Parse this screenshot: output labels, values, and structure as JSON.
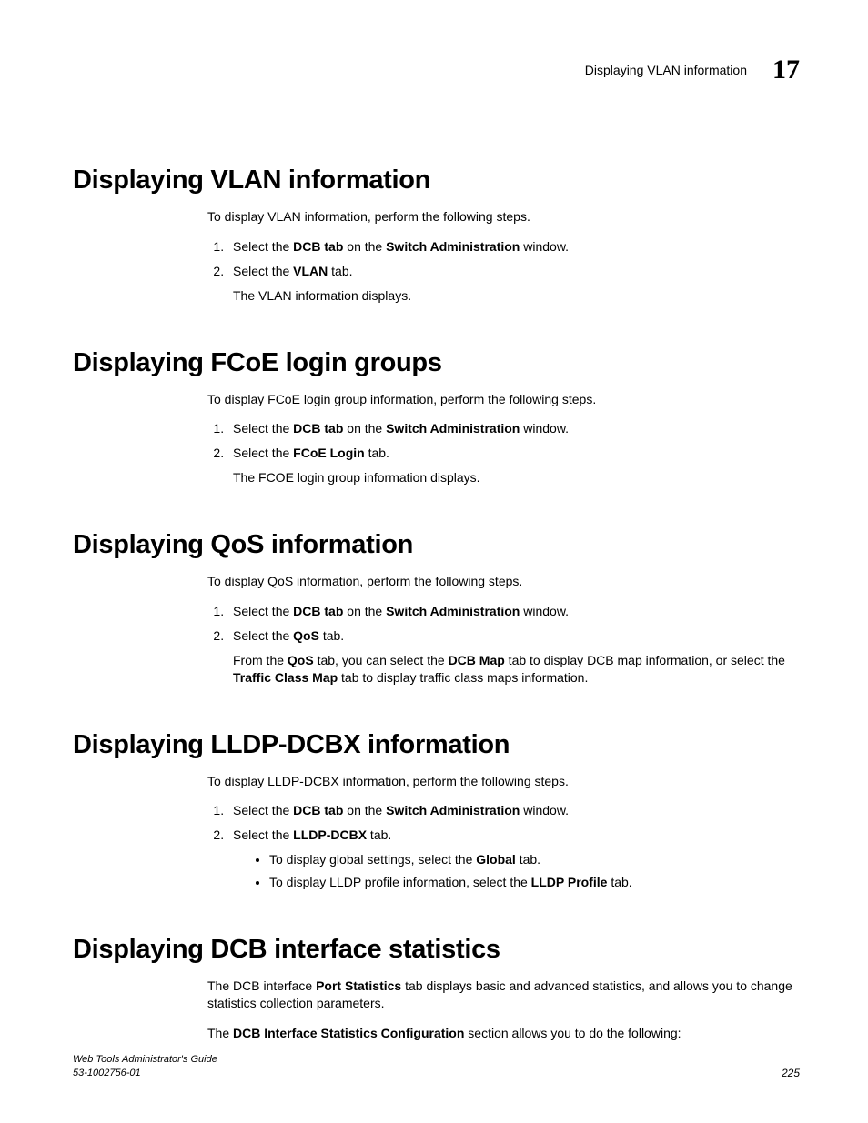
{
  "header": {
    "running_title": "Displaying VLAN information",
    "chapter_number": "17"
  },
  "sections": {
    "vlan": {
      "heading": "Displaying VLAN information",
      "intro": "To display VLAN information, perform the following steps.",
      "step1_pre": "Select the ",
      "step1_b1": "DCB tab",
      "step1_mid": " on the ",
      "step1_b2": "Switch Administration",
      "step1_post": " window.",
      "step2_pre": "Select the ",
      "step2_b1": "VLAN",
      "step2_post": " tab.",
      "step2_sub": "The VLAN information displays."
    },
    "fcoe": {
      "heading": "Displaying FCoE login groups",
      "intro": "To display FCoE login group information, perform the following steps.",
      "step1_pre": "Select the ",
      "step1_b1": "DCB tab",
      "step1_mid": " on the ",
      "step1_b2": "Switch Administration",
      "step1_post": " window.",
      "step2_pre": "Select the ",
      "step2_b1": "FCoE Login",
      "step2_post": " tab.",
      "step2_sub": "The FCOE login group information displays."
    },
    "qos": {
      "heading": "Displaying QoS information",
      "intro": "To display QoS information, perform the following steps.",
      "step1_pre": "Select the ",
      "step1_b1": "DCB tab",
      "step1_mid": " on the ",
      "step1_b2": "Switch Administration",
      "step1_post": " window.",
      "step2_pre": "Select the ",
      "step2_b1": "QoS",
      "step2_post": " tab.",
      "sub_pre": "From the ",
      "sub_b1": "QoS",
      "sub_mid1": " tab, you can select the ",
      "sub_b2": "DCB Map",
      "sub_mid2": " tab to display DCB map information, or select the ",
      "sub_b3": "Traffic Class Map",
      "sub_post": " tab to display traffic class maps information."
    },
    "lldp": {
      "heading": "Displaying LLDP-DCBX information",
      "intro": "To display LLDP-DCBX information, perform the following steps.",
      "step1_pre": "Select the ",
      "step1_b1": "DCB tab",
      "step1_mid": " on the ",
      "step1_b2": "Switch Administration",
      "step1_post": " window.",
      "step2_pre": "Select the ",
      "step2_b1": "LLDP-DCBX",
      "step2_post": " tab.",
      "bullet1_pre": "To display global settings, select the ",
      "bullet1_b": "Global",
      "bullet1_post": " tab.",
      "bullet2_pre": "To display LLDP profile information, select the ",
      "bullet2_b": "LLDP Profile",
      "bullet2_post": " tab."
    },
    "dcb_stats": {
      "heading": "Displaying DCB interface statistics",
      "p1_pre": "The DCB interface ",
      "p1_b1": "Port Statistics",
      "p1_post": " tab displays basic and advanced statistics, and allows you to change statistics collection parameters.",
      "p2_pre": "The ",
      "p2_b1": "DCB Interface Statistics Configuration",
      "p2_post": " section allows you to do the following:"
    }
  },
  "footer": {
    "guide": "Web Tools Administrator's Guide",
    "doc_id": "53-1002756-01",
    "page_num": "225"
  }
}
